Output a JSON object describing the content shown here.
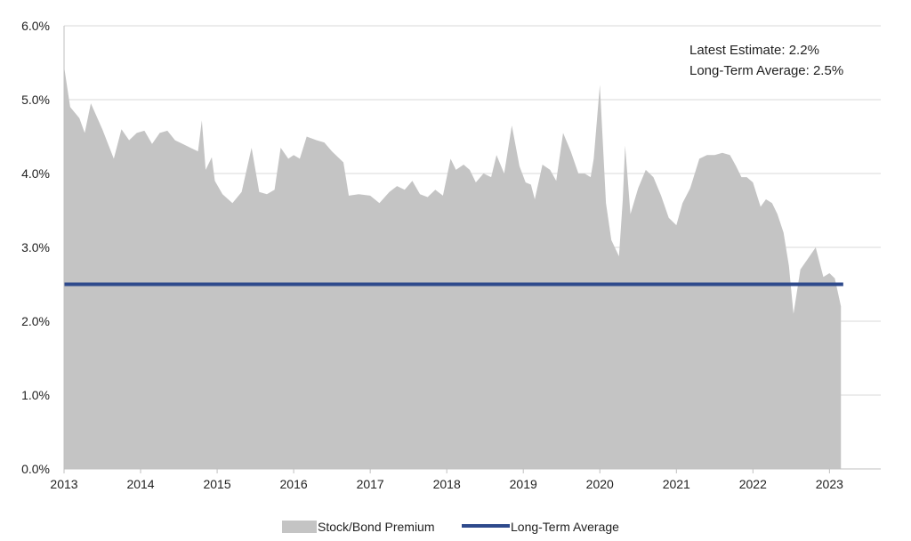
{
  "chart_data": {
    "type": "area",
    "annotations": {
      "latest_estimate": "Latest Estimate: 2.2%",
      "long_term_average": "Long-Term Average: 2.5%"
    },
    "legend": {
      "placement": "bottom-center",
      "entries": [
        {
          "label": "Stock/Bond Premium",
          "color": "#c4c4c4",
          "kind": "area"
        },
        {
          "label": "Long-Term Average",
          "color": "#2e4a8c",
          "kind": "line"
        }
      ]
    },
    "x_axis": {
      "min": 2013.0,
      "max": 2023.67,
      "ticks": [
        2013,
        2014,
        2015,
        2016,
        2017,
        2018,
        2019,
        2020,
        2021,
        2022,
        2023
      ],
      "tick_labels": [
        "2013",
        "2014",
        "2015",
        "2016",
        "2017",
        "2018",
        "2019",
        "2020",
        "2021",
        "2022",
        "2023"
      ]
    },
    "y_axis": {
      "min": 0,
      "max": 6,
      "ticks": [
        0,
        1,
        2,
        3,
        4,
        5,
        6
      ],
      "tick_labels": [
        "0.0%",
        "1.0%",
        "2.0%",
        "3.0%",
        "4.0%",
        "5.0%",
        "6.0%"
      ]
    },
    "grid": {
      "horizontal": true,
      "vertical": false
    },
    "series": [
      {
        "name": "Stock/Bond Premium",
        "type": "area",
        "color": "#c4c4c4",
        "x": [
          2013.0,
          2013.08,
          2013.2,
          2013.27,
          2013.35,
          2013.5,
          2013.65,
          2013.75,
          2013.85,
          2013.95,
          2014.05,
          2014.15,
          2014.25,
          2014.35,
          2014.45,
          2014.55,
          2014.65,
          2014.75,
          2014.8,
          2014.85,
          2014.93,
          2014.97,
          2015.07,
          2015.2,
          2015.32,
          2015.45,
          2015.55,
          2015.65,
          2015.75,
          2015.83,
          2015.93,
          2016.0,
          2016.08,
          2016.17,
          2016.3,
          2016.4,
          2016.5,
          2016.6,
          2016.65,
          2016.72,
          2016.85,
          2017.0,
          2017.12,
          2017.25,
          2017.35,
          2017.45,
          2017.55,
          2017.65,
          2017.75,
          2017.85,
          2017.95,
          2018.05,
          2018.12,
          2018.22,
          2018.3,
          2018.38,
          2018.48,
          2018.58,
          2018.65,
          2018.75,
          2018.85,
          2018.95,
          2019.03,
          2019.1,
          2019.15,
          2019.25,
          2019.35,
          2019.43,
          2019.52,
          2019.62,
          2019.72,
          2019.8,
          2019.88,
          2019.92,
          2020.0,
          2020.08,
          2020.15,
          2020.25,
          2020.3,
          2020.33,
          2020.4,
          2020.5,
          2020.6,
          2020.7,
          2020.8,
          2020.9,
          2021.0,
          2021.08,
          2021.18,
          2021.3,
          2021.4,
          2021.5,
          2021.6,
          2021.7,
          2021.78,
          2021.85,
          2021.92,
          2022.0,
          2022.1,
          2022.17,
          2022.25,
          2022.32,
          2022.4,
          2022.47,
          2022.53,
          2022.62,
          2022.72,
          2022.82,
          2022.92,
          2023.0,
          2023.07,
          2023.15
        ],
        "values": [
          5.45,
          4.9,
          4.75,
          4.55,
          4.95,
          4.6,
          4.2,
          4.6,
          4.45,
          4.55,
          4.58,
          4.4,
          4.55,
          4.58,
          4.45,
          4.4,
          4.35,
          4.3,
          4.72,
          4.05,
          4.22,
          3.9,
          3.72,
          3.6,
          3.75,
          4.35,
          3.75,
          3.72,
          3.78,
          4.35,
          4.2,
          4.25,
          4.2,
          4.5,
          4.45,
          4.42,
          4.3,
          4.2,
          4.15,
          3.7,
          3.72,
          3.7,
          3.6,
          3.75,
          3.83,
          3.78,
          3.9,
          3.72,
          3.68,
          3.78,
          3.7,
          4.2,
          4.05,
          4.12,
          4.05,
          3.88,
          4.0,
          3.95,
          4.25,
          4.0,
          4.65,
          4.1,
          3.88,
          3.85,
          3.65,
          4.12,
          4.05,
          3.9,
          4.55,
          4.3,
          4.0,
          4.0,
          3.95,
          4.2,
          5.2,
          3.6,
          3.1,
          2.88,
          3.65,
          4.38,
          3.45,
          3.8,
          4.05,
          3.95,
          3.7,
          3.4,
          3.3,
          3.6,
          3.8,
          4.2,
          4.25,
          4.25,
          4.28,
          4.25,
          4.1,
          3.95,
          3.95,
          3.88,
          3.55,
          3.65,
          3.6,
          3.45,
          3.2,
          2.75,
          2.1,
          2.7,
          2.85,
          3.0,
          2.6,
          2.65,
          2.58,
          2.2
        ]
      },
      {
        "name": "Long-Term Average",
        "type": "line",
        "color": "#2e4a8c",
        "x": [
          2013.0,
          2023.18
        ],
        "values": [
          2.5,
          2.5
        ]
      }
    ]
  }
}
